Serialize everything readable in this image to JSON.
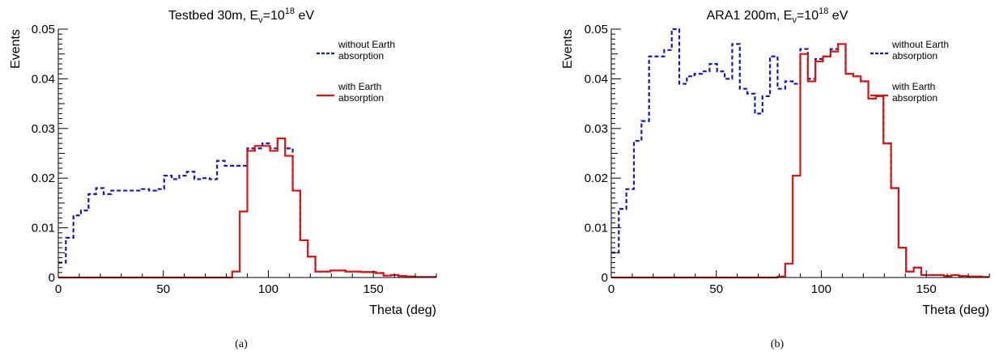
{
  "chart_data": [
    {
      "type": "step",
      "title_main": "Testbed 30m, E",
      "title_sub": "ν",
      "title_eq": "=10",
      "title_exp": "18",
      "title_unit": " eV",
      "xlabel": "Theta (deg)",
      "ylabel": "Events",
      "xlim": [
        0,
        180
      ],
      "ylim": [
        0,
        0.05
      ],
      "x_ticks": [
        "0",
        "50",
        "100",
        "150"
      ],
      "y_ticks": [
        "0",
        "0.01",
        "0.02",
        "0.03",
        "0.04",
        "0.05"
      ],
      "caption": "(a)",
      "legend_position": "top-right",
      "bin_edges": [
        0,
        3.6,
        7.2,
        10.8,
        14.4,
        18,
        21.6,
        25.2,
        28.8,
        32.4,
        36,
        39.6,
        43.2,
        46.8,
        50.4,
        54,
        57.6,
        61.2,
        64.8,
        68.4,
        72,
        75.6,
        79.2,
        82.8,
        86.4,
        90,
        93.6,
        97.2,
        100.8,
        104.4,
        108,
        111.6,
        115.2,
        118.8,
        122.4,
        126,
        129.6,
        133.2,
        136.8,
        140.4,
        144,
        147.6,
        151.2,
        154.8,
        158.4,
        162,
        165.6,
        169.2,
        172.8,
        176.4,
        180
      ],
      "series": [
        {
          "name_line1": "without Earth",
          "name_line2": "absorption",
          "color": "#1a1aa6",
          "dash": "5,3",
          "values": [
            0.003,
            0.008,
            0.0125,
            0.0135,
            0.0168,
            0.018,
            0.0168,
            0.0175,
            0.0175,
            0.0175,
            0.0175,
            0.0178,
            0.0175,
            0.0178,
            0.0205,
            0.0198,
            0.0205,
            0.0213,
            0.0198,
            0.02,
            0.0198,
            0.0235,
            0.0225,
            0.0225,
            0.0225,
            0.026,
            0.026,
            0.027,
            0.026,
            0.028,
            0.026,
            0.0175,
            0.0075,
            0.0042,
            0.0012,
            0.0012,
            0.0014,
            0.0014,
            0.0012,
            0.0012,
            0.0011,
            0.0011,
            0.0009,
            0.0004,
            0.0005,
            0.0003,
            0.0002,
            0.0001,
            0.0001,
            0.0001
          ]
        },
        {
          "name_line1": "with Earth",
          "name_line2": "absorption",
          "color": "#d01818",
          "dash": "",
          "values": [
            0,
            0,
            0,
            0,
            0,
            0,
            0,
            0,
            0,
            0,
            0,
            0,
            0,
            0,
            0,
            0,
            0,
            0,
            0,
            0,
            0,
            0,
            0,
            0.0012,
            0.0133,
            0.0255,
            0.0265,
            0.0265,
            0.0255,
            0.028,
            0.0245,
            0.0175,
            0.0075,
            0.0042,
            0.0012,
            0.0012,
            0.0014,
            0.0014,
            0.0012,
            0.0012,
            0.0011,
            0.0011,
            0.0009,
            0.0004,
            0.0005,
            0.0003,
            0.0002,
            0.0001,
            0.0001,
            0.0001
          ]
        }
      ]
    },
    {
      "type": "step",
      "title_main": "ARA1 200m, E",
      "title_sub": "ν",
      "title_eq": "=10",
      "title_exp": "18",
      "title_unit": " eV",
      "xlabel": "Theta (deg)",
      "ylabel": "Events",
      "xlim": [
        0,
        180
      ],
      "ylim": [
        0,
        0.05
      ],
      "x_ticks": [
        "0",
        "50",
        "100",
        "150"
      ],
      "y_ticks": [
        "0",
        "0.01",
        "0.02",
        "0.03",
        "0.04",
        "0.05"
      ],
      "caption": "(b)",
      "legend_position": "top-right",
      "bin_edges": [
        0,
        3.6,
        7.2,
        10.8,
        14.4,
        18,
        21.6,
        25.2,
        28.8,
        32.4,
        36,
        39.6,
        43.2,
        46.8,
        50.4,
        54,
        57.6,
        61.2,
        64.8,
        68.4,
        72,
        75.6,
        79.2,
        82.8,
        86.4,
        90,
        93.6,
        97.2,
        100.8,
        104.4,
        108,
        111.6,
        115.2,
        118.8,
        122.4,
        126,
        129.6,
        133.2,
        136.8,
        140.4,
        144,
        147.6,
        151.2,
        154.8,
        158.4,
        162,
        165.6,
        169.2,
        172.8,
        176.4,
        180
      ],
      "series": [
        {
          "name_line1": "without Earth",
          "name_line2": "absorption",
          "color": "#1a1aa6",
          "dash": "5,3",
          "values": [
            0.005,
            0.0138,
            0.0178,
            0.0275,
            0.0315,
            0.0445,
            0.0445,
            0.0458,
            0.05,
            0.039,
            0.0405,
            0.041,
            0.0415,
            0.043,
            0.0415,
            0.04,
            0.047,
            0.038,
            0.037,
            0.033,
            0.0365,
            0.0445,
            0.038,
            0.0395,
            0.039,
            0.046,
            0.04,
            0.044,
            0.0445,
            0.046,
            0.047,
            0.041,
            0.0405,
            0.0395,
            0.036,
            0.0365,
            0.027,
            0.018,
            0.006,
            0.0012,
            0.002,
            0.0005,
            0.0005,
            0.0005,
            0.0003,
            0.0005,
            0.0003,
            0.0002,
            0.0002,
            0.0001
          ]
        },
        {
          "name_line1": "with Earth",
          "name_line2": "absorption",
          "color": "#d01818",
          "dash": "",
          "values": [
            0,
            0,
            0,
            0,
            0,
            0,
            0,
            0,
            0,
            0,
            0,
            0,
            0,
            0,
            0,
            0,
            0,
            0,
            0,
            0,
            0,
            0,
            0.0002,
            0.0028,
            0.0205,
            0.045,
            0.0395,
            0.0435,
            0.0445,
            0.0455,
            0.047,
            0.041,
            0.0405,
            0.0395,
            0.036,
            0.0365,
            0.027,
            0.018,
            0.006,
            0.0012,
            0.002,
            0.0005,
            0.0005,
            0.0005,
            0.0003,
            0.0005,
            0.0003,
            0.0002,
            0.0002,
            0.0001
          ]
        }
      ]
    }
  ]
}
